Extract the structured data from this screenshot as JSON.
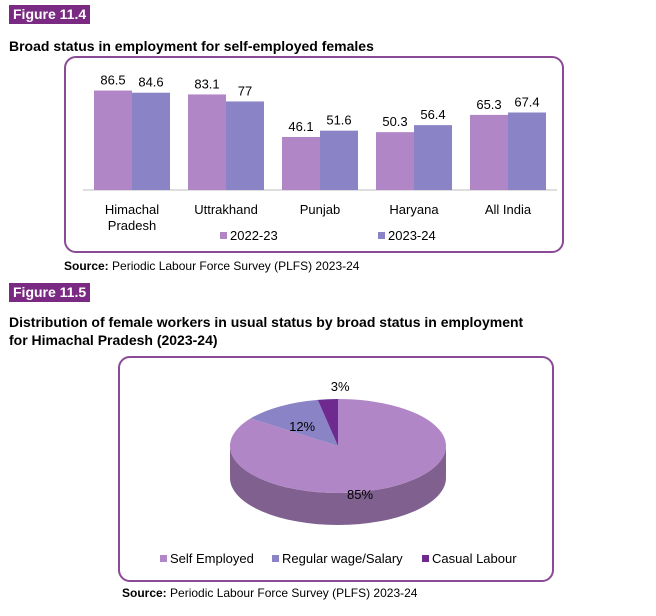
{
  "figure1": {
    "label": "Figure 11.4",
    "title": "Broad status in employment for self-employed females",
    "source_prefix": "Source:",
    "source_text": " Periodic Labour Force Survey (PLFS) 2023-24"
  },
  "figure2": {
    "label": "Figure 11.5",
    "title_line1": "Distribution of female workers in usual status by broad status in employment",
    "title_line2": "for Himachal Pradesh (2023-24)",
    "source_prefix": "Source:",
    "source_text": " Periodic Labour Force Survey (PLFS) 2023-24"
  },
  "chart_data": [
    {
      "type": "bar",
      "title": "Broad status in employment for self-employed females",
      "categories": [
        [
          "Himachal",
          "Pradesh"
        ],
        [
          "Uttrakhand"
        ],
        [
          "Punjab"
        ],
        [
          "Haryana"
        ],
        [
          "All India"
        ]
      ],
      "series": [
        {
          "name": "2022-23",
          "values": [
            86.5,
            83.1,
            46.1,
            50.3,
            65.3
          ],
          "labels": [
            "86.5",
            "83.1",
            "46.1",
            "50.3",
            "65.3"
          ],
          "color": "#b186c6"
        },
        {
          "name": "2023-24",
          "values": [
            84.6,
            77,
            51.6,
            56.4,
            67.4
          ],
          "labels": [
            "84.6",
            "77",
            "51.6",
            "56.4",
            "67.4"
          ],
          "color": "#8a84c6"
        }
      ],
      "ylim": [
        0,
        100
      ],
      "grid": false,
      "legend": "bottom"
    },
    {
      "type": "pie",
      "title": "Distribution of female workers in usual status by broad status in employment for Himachal Pradesh (2023-24)",
      "slices": [
        {
          "name": "Self Employed",
          "value": 85,
          "label": "85%",
          "color": "#b186c6"
        },
        {
          "name": "Regular wage/Salary",
          "value": 12,
          "label": "12%",
          "color": "#8a84c6"
        },
        {
          "name": "Casual Labour",
          "value": 3,
          "label": "3%",
          "color": "#6e2a8e"
        }
      ],
      "legend": "bottom"
    }
  ]
}
